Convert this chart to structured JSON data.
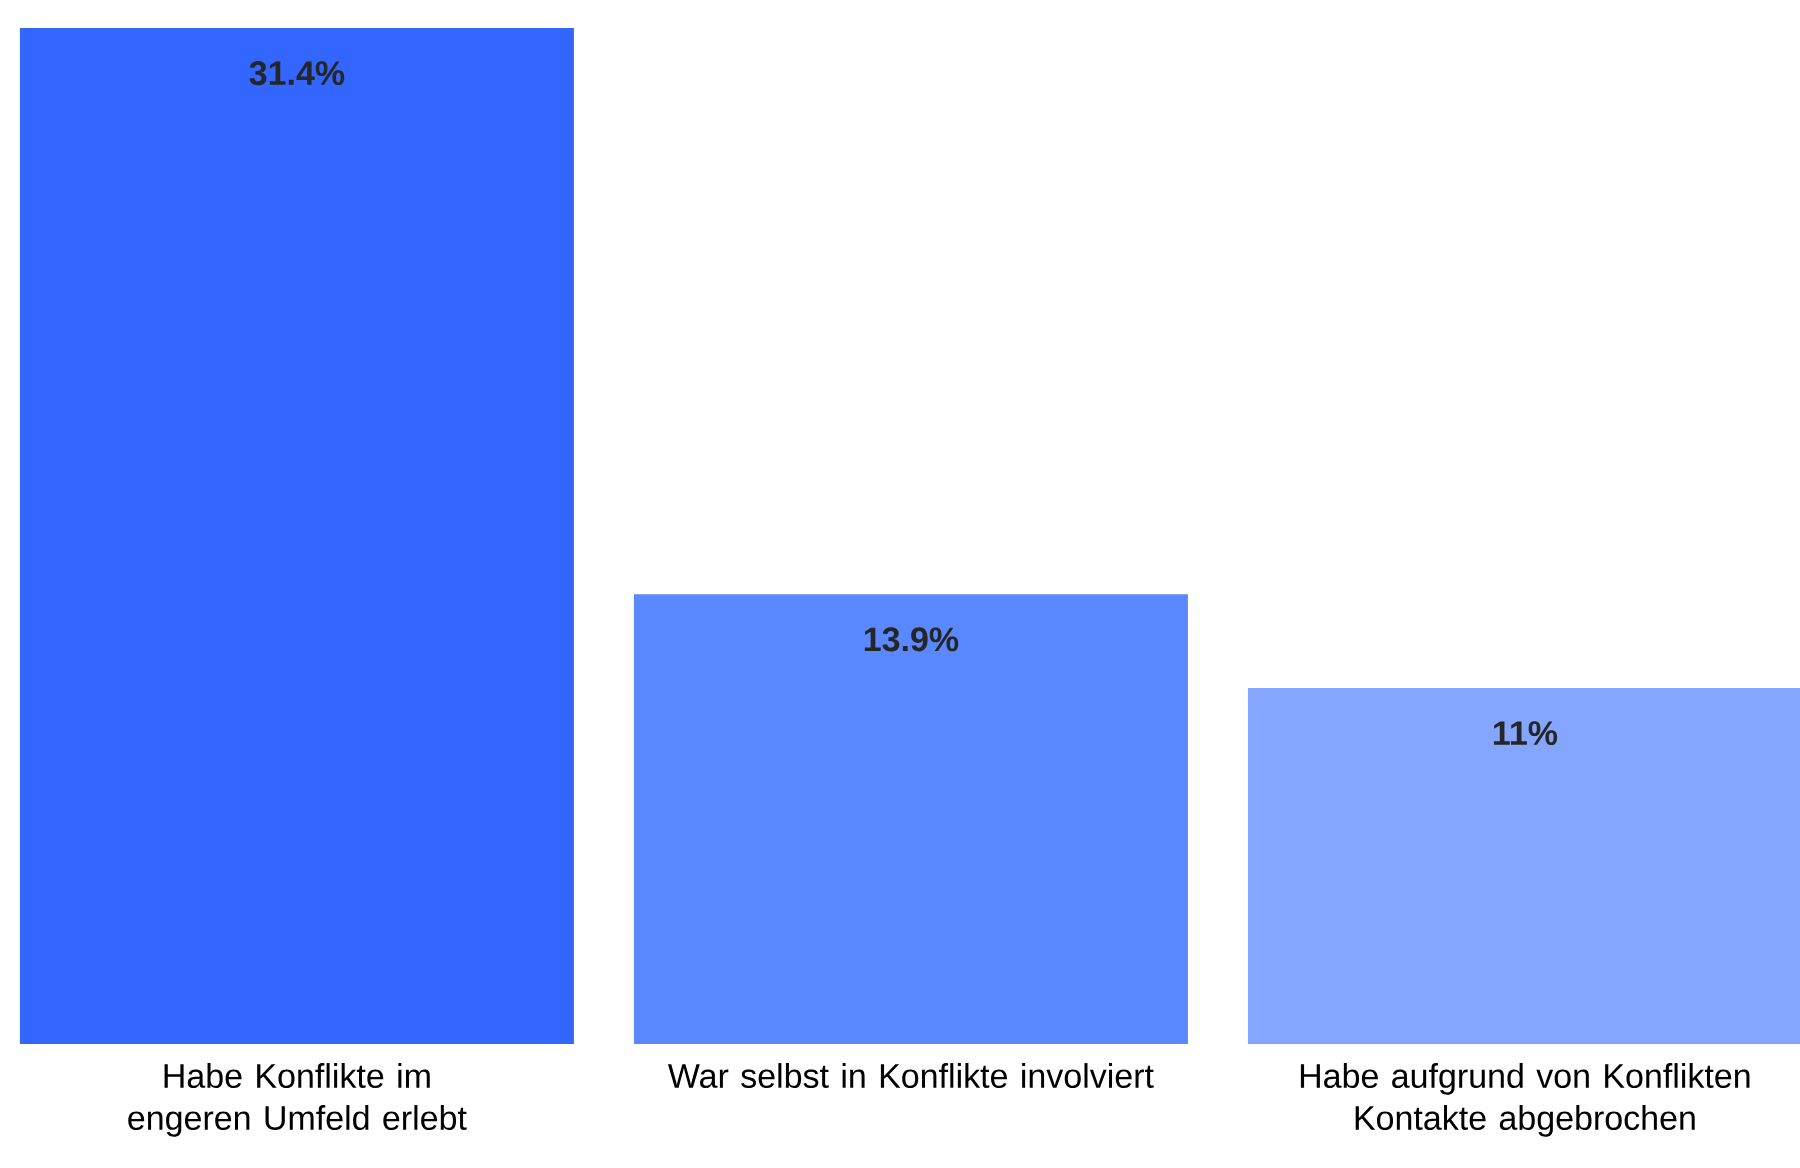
{
  "chart_data": {
    "type": "bar",
    "categories": [
      "Habe Konflikte im engeren Umfeld erlebt",
      "War selbst in Konflikte involviert",
      "Habe aufgrund von Konflikten Kontakte abgebrochen"
    ],
    "values": [
      31.4,
      13.9,
      11
    ],
    "colors": [
      "#3366ff",
      "#5a88ff",
      "#84a6ff"
    ],
    "value_labels": [
      "31.4%",
      "13.9%",
      "11%"
    ]
  }
}
